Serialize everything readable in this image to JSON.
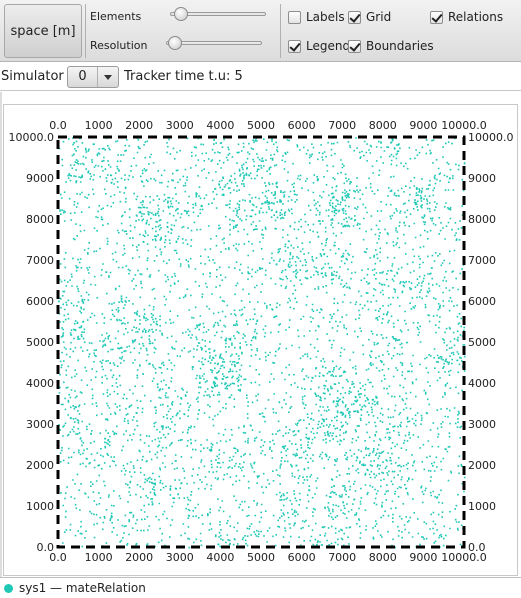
{
  "toolbar": {
    "space_label": "space [m]",
    "elements_label": "Elements",
    "elements_slider_value": 0.05,
    "resolution_label": "Resolution",
    "resolution_slider_value": 0.03,
    "labels_label": "Labels",
    "labels_checked": false,
    "grid_label": "Grid",
    "grid_checked": true,
    "relations_label": "Relations",
    "relations_checked": true,
    "legend_label": "Legend",
    "legend_checked": true,
    "boundaries_label": "Boundaries",
    "boundaries_checked": true
  },
  "simulator": {
    "label": "Simulator",
    "selected": "0",
    "tracker_text": "Tracker time t.u: 5"
  },
  "legend": {
    "entry": "sys1 — mateRelation",
    "color": "#1fc8b5"
  },
  "chart_data": {
    "type": "scatter",
    "x_ticks": [
      "0.0",
      "1000",
      "2000",
      "3000",
      "4000",
      "5000",
      "6000",
      "7000",
      "8000",
      "9000",
      "10000.0"
    ],
    "y_ticks": [
      "0.0",
      "1000",
      "2000",
      "3000",
      "4000",
      "5000",
      "6000",
      "7000",
      "8000",
      "9000",
      "10000.0"
    ],
    "xlim": [
      0,
      10000
    ],
    "ylim": [
      0,
      10000
    ],
    "series": [
      {
        "name": "sys1 — mateRelation",
        "color": "#1fc8b5",
        "distribution": "dense-uniform-with-clusters",
        "point_count_approx": 12000
      }
    ],
    "grid": true,
    "boundaries": true
  }
}
